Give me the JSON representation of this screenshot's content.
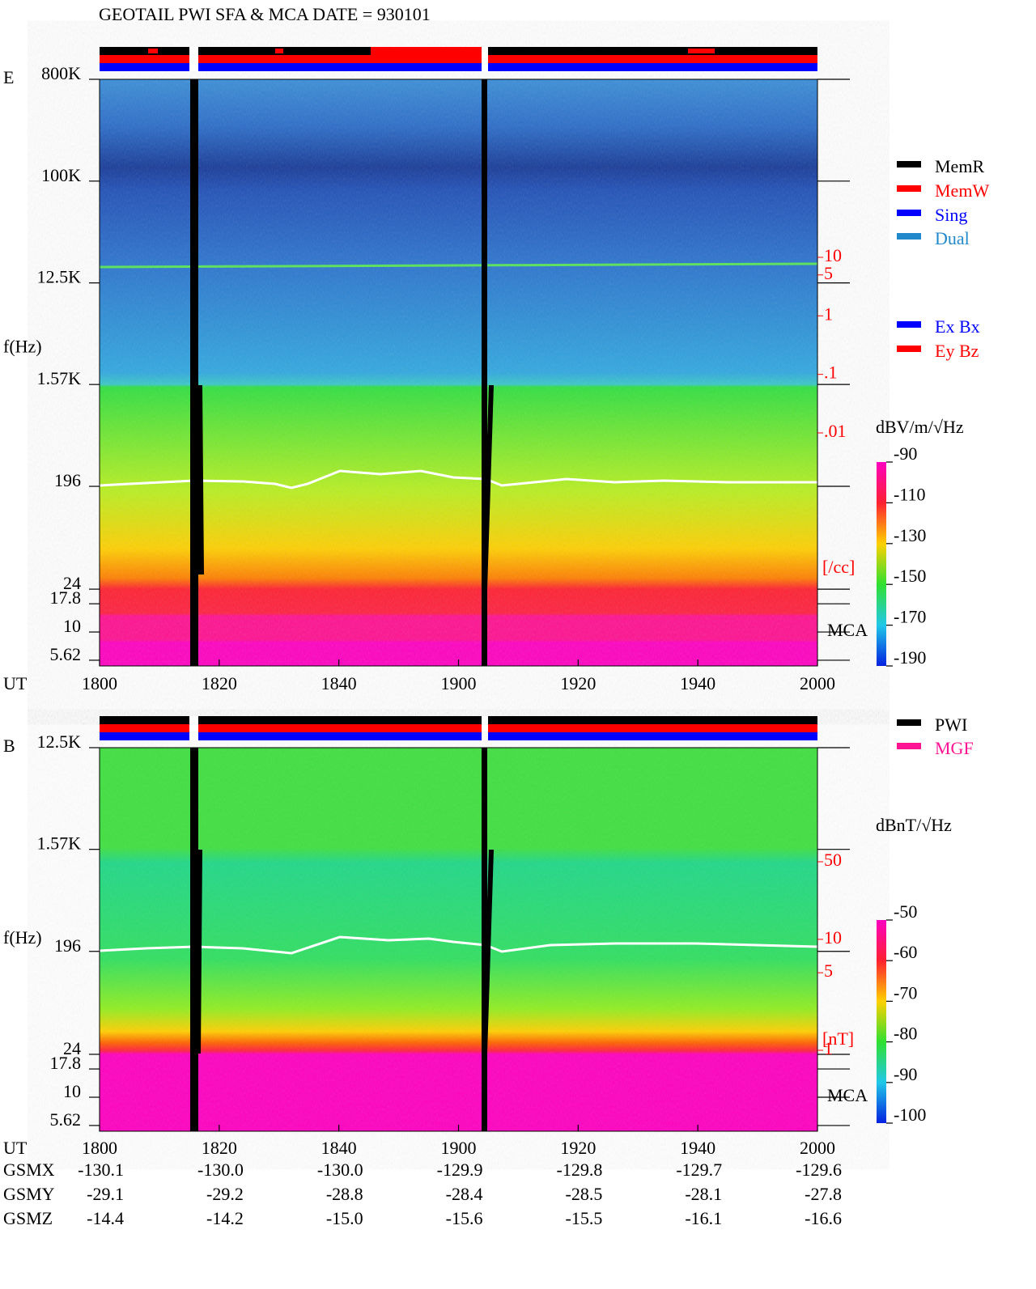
{
  "title": "GEOTAIL  PWI SFA & MCA   DATE = 930101",
  "chart_data": [
    {
      "type": "spectrogram",
      "panel_label": "E",
      "ylabel": "f(Hz)",
      "xlabel": "UT",
      "mca_label": "MCA",
      "xlim": [
        1800,
        2000
      ],
      "xticks": [
        1800,
        1820,
        1840,
        1900,
        1920,
        1940,
        2000
      ],
      "ylim": [
        5,
        800000
      ],
      "log_y": true,
      "yticks": [
        {
          "value": 800000,
          "label": "800K"
        },
        {
          "value": 100000,
          "label": "100K"
        },
        {
          "value": 12500,
          "label": "12.5K"
        },
        {
          "value": 1570,
          "label": "1.57K"
        },
        196,
        24,
        17.8,
        10,
        5.62
      ],
      "right_ylim": [
        0.01,
        10
      ],
      "right_yticks": [
        10,
        5,
        1,
        {
          "value": 0.1,
          "label": ".1"
        },
        {
          "value": 0.01,
          "label": ".01"
        }
      ],
      "right_unit": "[/cc]",
      "colorbar_label": "dBV/m/√Hz",
      "clim": [
        -190,
        -90
      ],
      "cticks": [
        -90,
        -110,
        -130,
        -150,
        -170,
        -190
      ],
      "legend": [
        {
          "name": "MemR",
          "color": "#000000"
        },
        {
          "name": "MemW",
          "color": "#ff0000"
        },
        {
          "name": "Sing",
          "color": "#0000ff"
        },
        {
          "name": "Dual",
          "color": "#2288cc"
        }
      ],
      "legend2": [
        {
          "name": "Ex Bx",
          "color": "#0000ff"
        },
        {
          "name": "Ey Bz",
          "color": "#ff0000"
        }
      ]
    },
    {
      "type": "spectrogram",
      "panel_label": "B",
      "ylabel": "f(Hz)",
      "xlabel": "UT",
      "mca_label": "MCA",
      "xlim": [
        1800,
        2000
      ],
      "xticks": [
        1800,
        1820,
        1840,
        1900,
        1920,
        1940,
        2000
      ],
      "ylim": [
        5,
        12500
      ],
      "log_y": true,
      "yticks": [
        {
          "value": 12500,
          "label": "12.5K"
        },
        {
          "value": 1570,
          "label": "1.57K"
        },
        196,
        24,
        17.8,
        10,
        5.62
      ],
      "right_ylim": [
        1,
        50
      ],
      "right_yticks": [
        50,
        10,
        5,
        1
      ],
      "right_unit": "[nT]",
      "colorbar_label": "dBnT/√Hz",
      "clim": [
        -100,
        -50
      ],
      "cticks": [
        -50,
        -60,
        -70,
        -80,
        -90,
        -100
      ],
      "legend": [
        {
          "name": "PWI",
          "color": "#000000"
        },
        {
          "name": "MGF",
          "color": "#ff1493"
        }
      ]
    }
  ],
  "orbit": {
    "rows": [
      {
        "name": "GSMX",
        "values": [
          -130.1,
          -130.0,
          -130.0,
          -129.9,
          -129.8,
          -129.7,
          -129.6
        ],
        "value_labels": [
          "-130.1",
          "-130.0",
          "-130.0",
          "-129.9",
          "-129.8",
          "-129.7",
          "-129.6"
        ]
      },
      {
        "name": "GSMY",
        "values": [
          -29.1,
          -29.2,
          -28.8,
          -28.4,
          -28.5,
          -28.1,
          -27.8
        ]
      },
      {
        "name": "GSMZ",
        "values": [
          -14.4,
          -14.2,
          -15.0,
          -15.6,
          -15.5,
          -16.1,
          -16.6
        ],
        "value_labels": [
          "-14.4",
          "-14.2",
          "-15.0",
          "-15.6",
          "-15.5",
          "-16.1",
          "-16.6"
        ]
      }
    ]
  }
}
